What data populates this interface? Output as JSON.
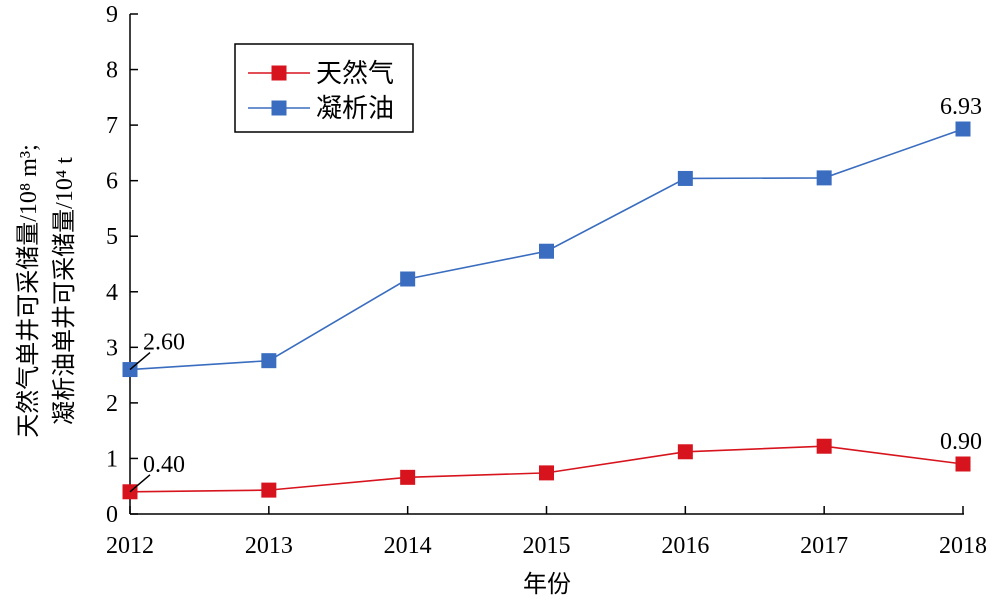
{
  "chart_data": {
    "type": "line",
    "title": "",
    "xlabel": "年份",
    "ylabel_line1": "天然气单井可采储量/10⁸ m³;",
    "ylabel_line2": "凝析油单井可采储量/10⁴ t",
    "ylim": [
      0,
      9
    ],
    "y_ticks": [
      "0",
      "1",
      "2",
      "3",
      "4",
      "5",
      "6",
      "7",
      "8",
      "9"
    ],
    "categories": [
      "2012",
      "2013",
      "2014",
      "2015",
      "2016",
      "2017",
      "2018"
    ],
    "grid": false,
    "legend_position": "top-left",
    "series": [
      {
        "name": "天然气",
        "color": "#d7141d",
        "marker": "square",
        "values": [
          0.4,
          0.43,
          0.66,
          0.74,
          1.12,
          1.22,
          0.9
        ]
      },
      {
        "name": "凝析油",
        "color": "#3a6dbf",
        "marker": "square",
        "values": [
          2.6,
          2.76,
          4.23,
          4.73,
          6.04,
          6.05,
          6.93
        ]
      }
    ],
    "annotations": [
      {
        "series": 1,
        "index": 0,
        "text": "2.60"
      },
      {
        "series": 1,
        "index": 6,
        "text": "6.93"
      },
      {
        "series": 0,
        "index": 0,
        "text": "0.40"
      },
      {
        "series": 0,
        "index": 6,
        "text": "0.90"
      }
    ]
  }
}
